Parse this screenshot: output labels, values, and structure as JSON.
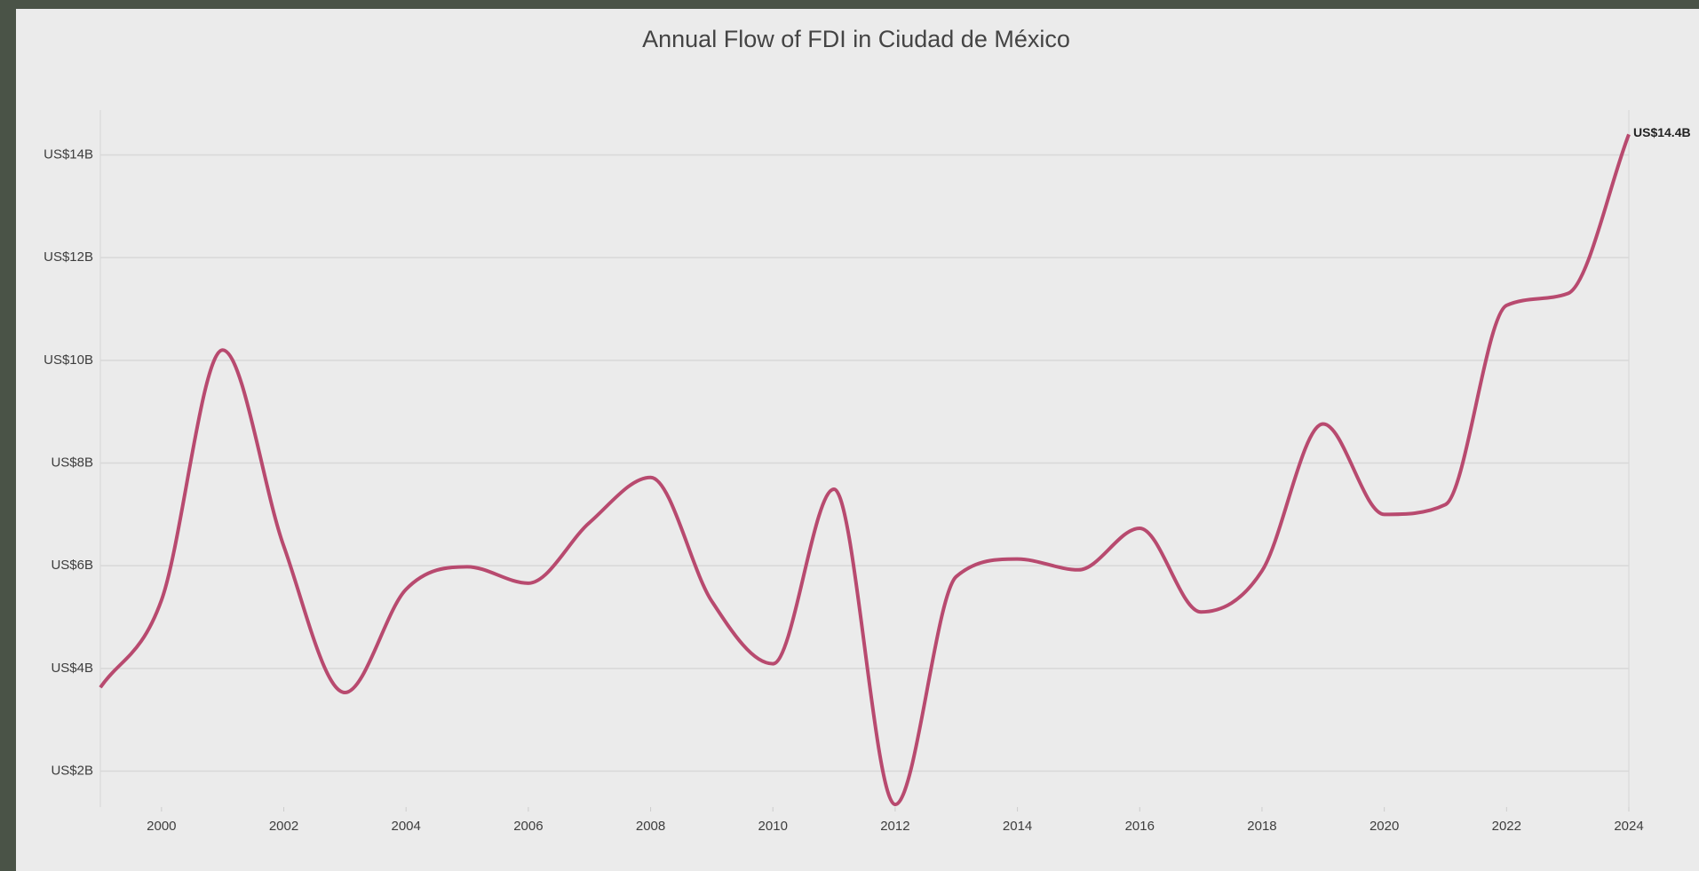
{
  "chart_data": {
    "type": "line",
    "title": "Annual Flow of FDI in Ciudad de México",
    "x": [
      1999,
      2000,
      2001,
      2002,
      2003,
      2004,
      2005,
      2006,
      2007,
      2008,
      2009,
      2010,
      2011,
      2012,
      2013,
      2014,
      2015,
      2016,
      2017,
      2018,
      2019,
      2020,
      2021,
      2022,
      2023,
      2024
    ],
    "values": [
      3.63,
      5.33,
      10.2,
      6.38,
      3.53,
      5.54,
      5.98,
      5.66,
      6.84,
      7.72,
      5.31,
      4.09,
      7.49,
      1.35,
      5.79,
      6.13,
      5.92,
      6.73,
      5.1,
      5.9,
      8.76,
      7.0,
      7.19,
      11.07,
      11.3,
      14.4
    ],
    "value_labels": [
      null,
      null,
      null,
      null,
      null,
      null,
      null,
      null,
      null,
      null,
      null,
      null,
      null,
      null,
      null,
      null,
      null,
      null,
      null,
      null,
      null,
      null,
      null,
      null,
      null,
      "US$14.4B"
    ],
    "color": "#b84a6f",
    "xlim": [
      1999,
      2024
    ],
    "xticks": [
      2000,
      2002,
      2004,
      2006,
      2008,
      2010,
      2012,
      2014,
      2016,
      2018,
      2020,
      2022,
      2024
    ],
    "ylim": [
      1.3,
      14.7
    ],
    "yticks": [
      {
        "value": 2,
        "label": "US$2B"
      },
      {
        "value": 4,
        "label": "US$4B"
      },
      {
        "value": 6,
        "label": "US$6B"
      },
      {
        "value": 8,
        "label": "US$8B"
      },
      {
        "value": 10,
        "label": "US$10B"
      },
      {
        "value": 12,
        "label": "US$12B"
      },
      {
        "value": 14,
        "label": "US$14B"
      }
    ],
    "grid": true
  }
}
